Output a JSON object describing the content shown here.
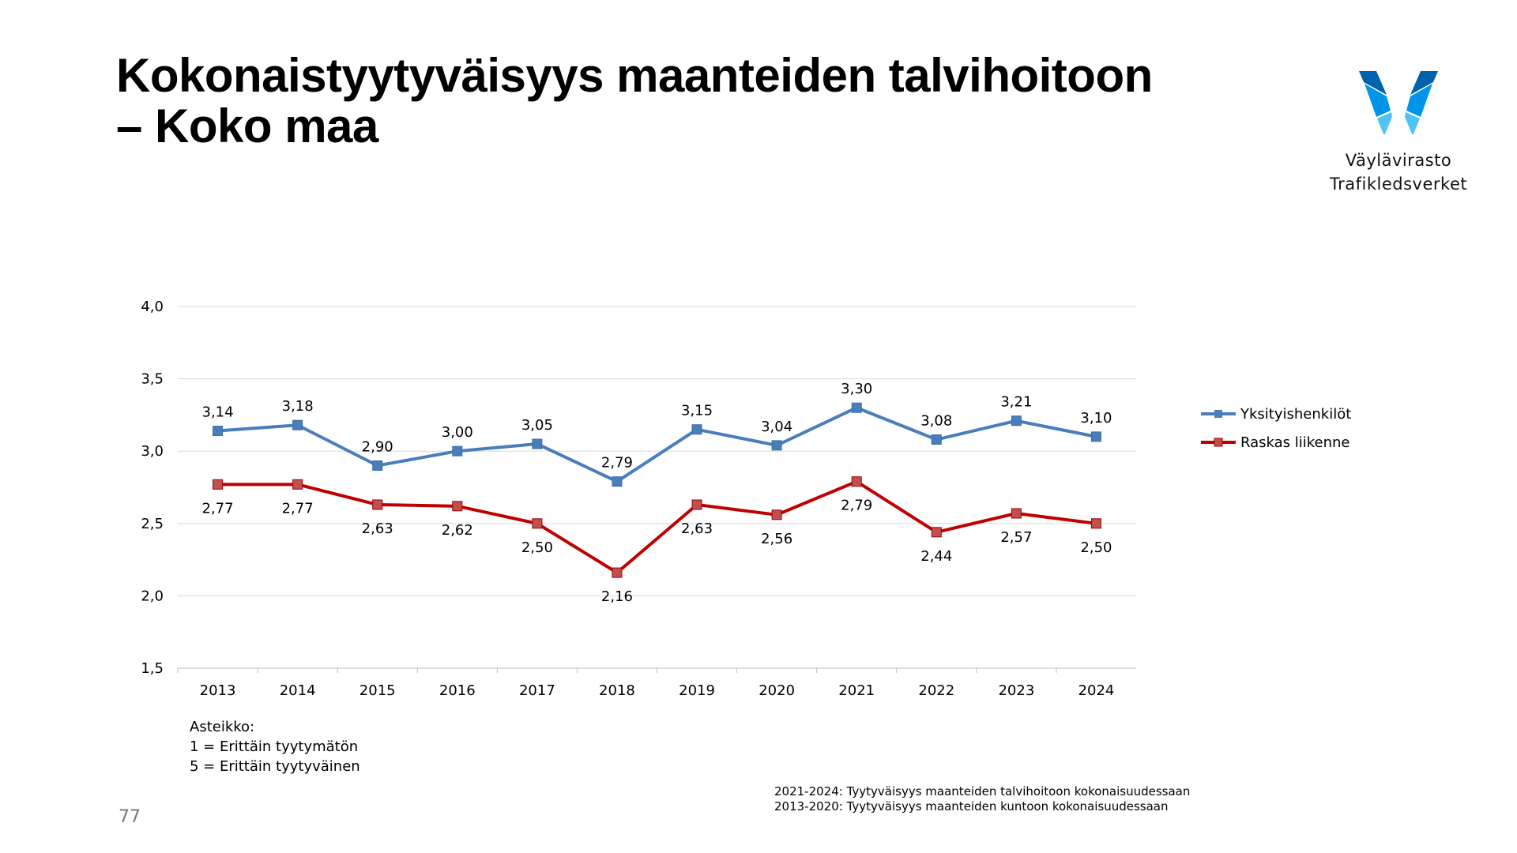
{
  "title_line1": "Kokonaistyytyväisyys maanteiden talvihoitoon",
  "title_line2": "– Koko maa",
  "logo": {
    "line1": "Väylävirasto",
    "line2": "Trafikledsverket"
  },
  "scale_note": {
    "heading": "Asteikko:",
    "low": "1 = Erittäin tyytymätön",
    "high": "5 = Erittäin tyytyväinen"
  },
  "footnotes": [
    "2021-2024: Tyytyväisyys maanteiden talvihoitoon kokonaisuudessaan",
    "2013-2020: Tyytyväisyys maanteiden kuntoon kokonaisuudessaan"
  ],
  "page_number": "77",
  "chart_data": {
    "type": "line",
    "title": "",
    "xlabel": "",
    "ylabel": "",
    "categories": [
      "2013",
      "2014",
      "2015",
      "2016",
      "2017",
      "2018",
      "2019",
      "2020",
      "2021",
      "2022",
      "2023",
      "2024"
    ],
    "ylim": [
      1.5,
      4.0
    ],
    "yticks": [
      "1,5",
      "2,0",
      "2,5",
      "3,0",
      "3,5",
      "4,0"
    ],
    "grid": true,
    "legend_position": "right",
    "series": [
      {
        "name": "Yksityishenkilöt",
        "color": "#4a7ebb",
        "values": [
          3.14,
          3.18,
          2.9,
          3.0,
          3.05,
          2.79,
          3.15,
          3.04,
          3.3,
          3.08,
          3.21,
          3.1
        ],
        "labels": [
          "3,14",
          "3,18",
          "2,90",
          "3,00",
          "3,05",
          "2,79",
          "3,15",
          "3,04",
          "3,30",
          "3,08",
          "3,21",
          "3,10"
        ]
      },
      {
        "name": "Raskas liikenne",
        "color": "#c00000",
        "values": [
          2.77,
          2.77,
          2.63,
          2.62,
          2.5,
          2.16,
          2.63,
          2.56,
          2.79,
          2.44,
          2.57,
          2.5
        ],
        "labels": [
          "2,77",
          "2,77",
          "2,63",
          "2,62",
          "2,50",
          "2,16",
          "2,63",
          "2,56",
          "2,79",
          "2,44",
          "2,57",
          "2,50"
        ]
      }
    ]
  }
}
